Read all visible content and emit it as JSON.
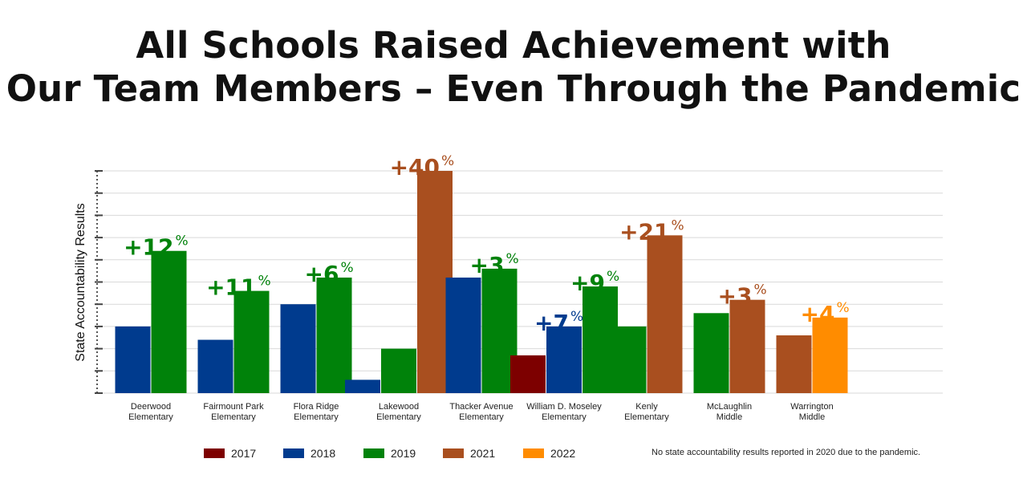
{
  "title": {
    "line1": "All Schools Raised Achievement with",
    "line2": "Our Team Members – Even Through the Pandemic"
  },
  "note": "No state accountability results reported in 2020 due to the pandemic.",
  "colors": {
    "2017": "#7d0000",
    "2018": "#003b8e",
    "2019": "#00820a",
    "2021": "#a94f1f",
    "2022": "#ff8c00"
  },
  "chart_data": {
    "type": "bar",
    "ylabel": "State Accountability Results",
    "ylim": [
      0,
      100
    ],
    "grid": true,
    "legend": [
      {
        "name": "2017",
        "color": "#7d0000"
      },
      {
        "name": "2018",
        "color": "#003b8e"
      },
      {
        "name": "2019",
        "color": "#00820a"
      },
      {
        "name": "2021",
        "color": "#a94f1f"
      },
      {
        "name": "2022",
        "color": "#ff8c00"
      }
    ],
    "groups": [
      {
        "label": [
          "Deerwood",
          "Elementary"
        ],
        "bars": [
          {
            "year": "2018",
            "value": 30
          },
          {
            "year": "2019",
            "value": 64
          }
        ],
        "change": {
          "text": "+12",
          "year": "2019"
        }
      },
      {
        "label": [
          "Fairmount Park",
          "Elementary"
        ],
        "bars": [
          {
            "year": "2018",
            "value": 24
          },
          {
            "year": "2019",
            "value": 46
          }
        ],
        "change": {
          "text": "+11",
          "year": "2019"
        }
      },
      {
        "label": [
          "Flora Ridge",
          "Elementary"
        ],
        "bars": [
          {
            "year": "2018",
            "value": 40
          },
          {
            "year": "2019",
            "value": 52
          }
        ],
        "change": {
          "text": "+6",
          "year": "2019"
        }
      },
      {
        "label": [
          "Lakewood",
          "Elementary"
        ],
        "bars": [
          {
            "year": "2018",
            "value": 6
          },
          {
            "year": "2019",
            "value": 20
          },
          {
            "year": "2021",
            "value": 100
          }
        ],
        "change": {
          "text": "+40",
          "year": "2021"
        }
      },
      {
        "label": [
          "Thacker Avenue",
          "Elementary"
        ],
        "bars": [
          {
            "year": "2018",
            "value": 52
          },
          {
            "year": "2019",
            "value": 56
          }
        ],
        "change": {
          "text": "+3",
          "year": "2019"
        }
      },
      {
        "label": [
          "William D. Moseley",
          "Elementary"
        ],
        "bars": [
          {
            "year": "2017",
            "value": 17
          },
          {
            "year": "2018",
            "value": 30
          },
          {
            "year": "2019",
            "value": 48
          }
        ],
        "change": {
          "text": "+9",
          "year": "2019"
        },
        "change2": {
          "text": "+7",
          "year": "2018"
        }
      },
      {
        "label": [
          "Kenly",
          "Elementary"
        ],
        "bars": [
          {
            "year": "2019",
            "value": 30
          },
          {
            "year": "2021",
            "value": 71
          }
        ],
        "change": {
          "text": "+21",
          "year": "2021"
        }
      },
      {
        "label": [
          "McLaughlin",
          "Middle"
        ],
        "bars": [
          {
            "year": "2019",
            "value": 36
          },
          {
            "year": "2021",
            "value": 42
          }
        ],
        "change": {
          "text": "+3",
          "year": "2021"
        }
      },
      {
        "label": [
          "Warrington",
          "Middle"
        ],
        "bars": [
          {
            "year": "2021",
            "value": 26
          },
          {
            "year": "2022",
            "value": 34
          }
        ],
        "change": {
          "text": "+4",
          "year": "2022"
        }
      }
    ],
    "percent_sign": "%"
  }
}
